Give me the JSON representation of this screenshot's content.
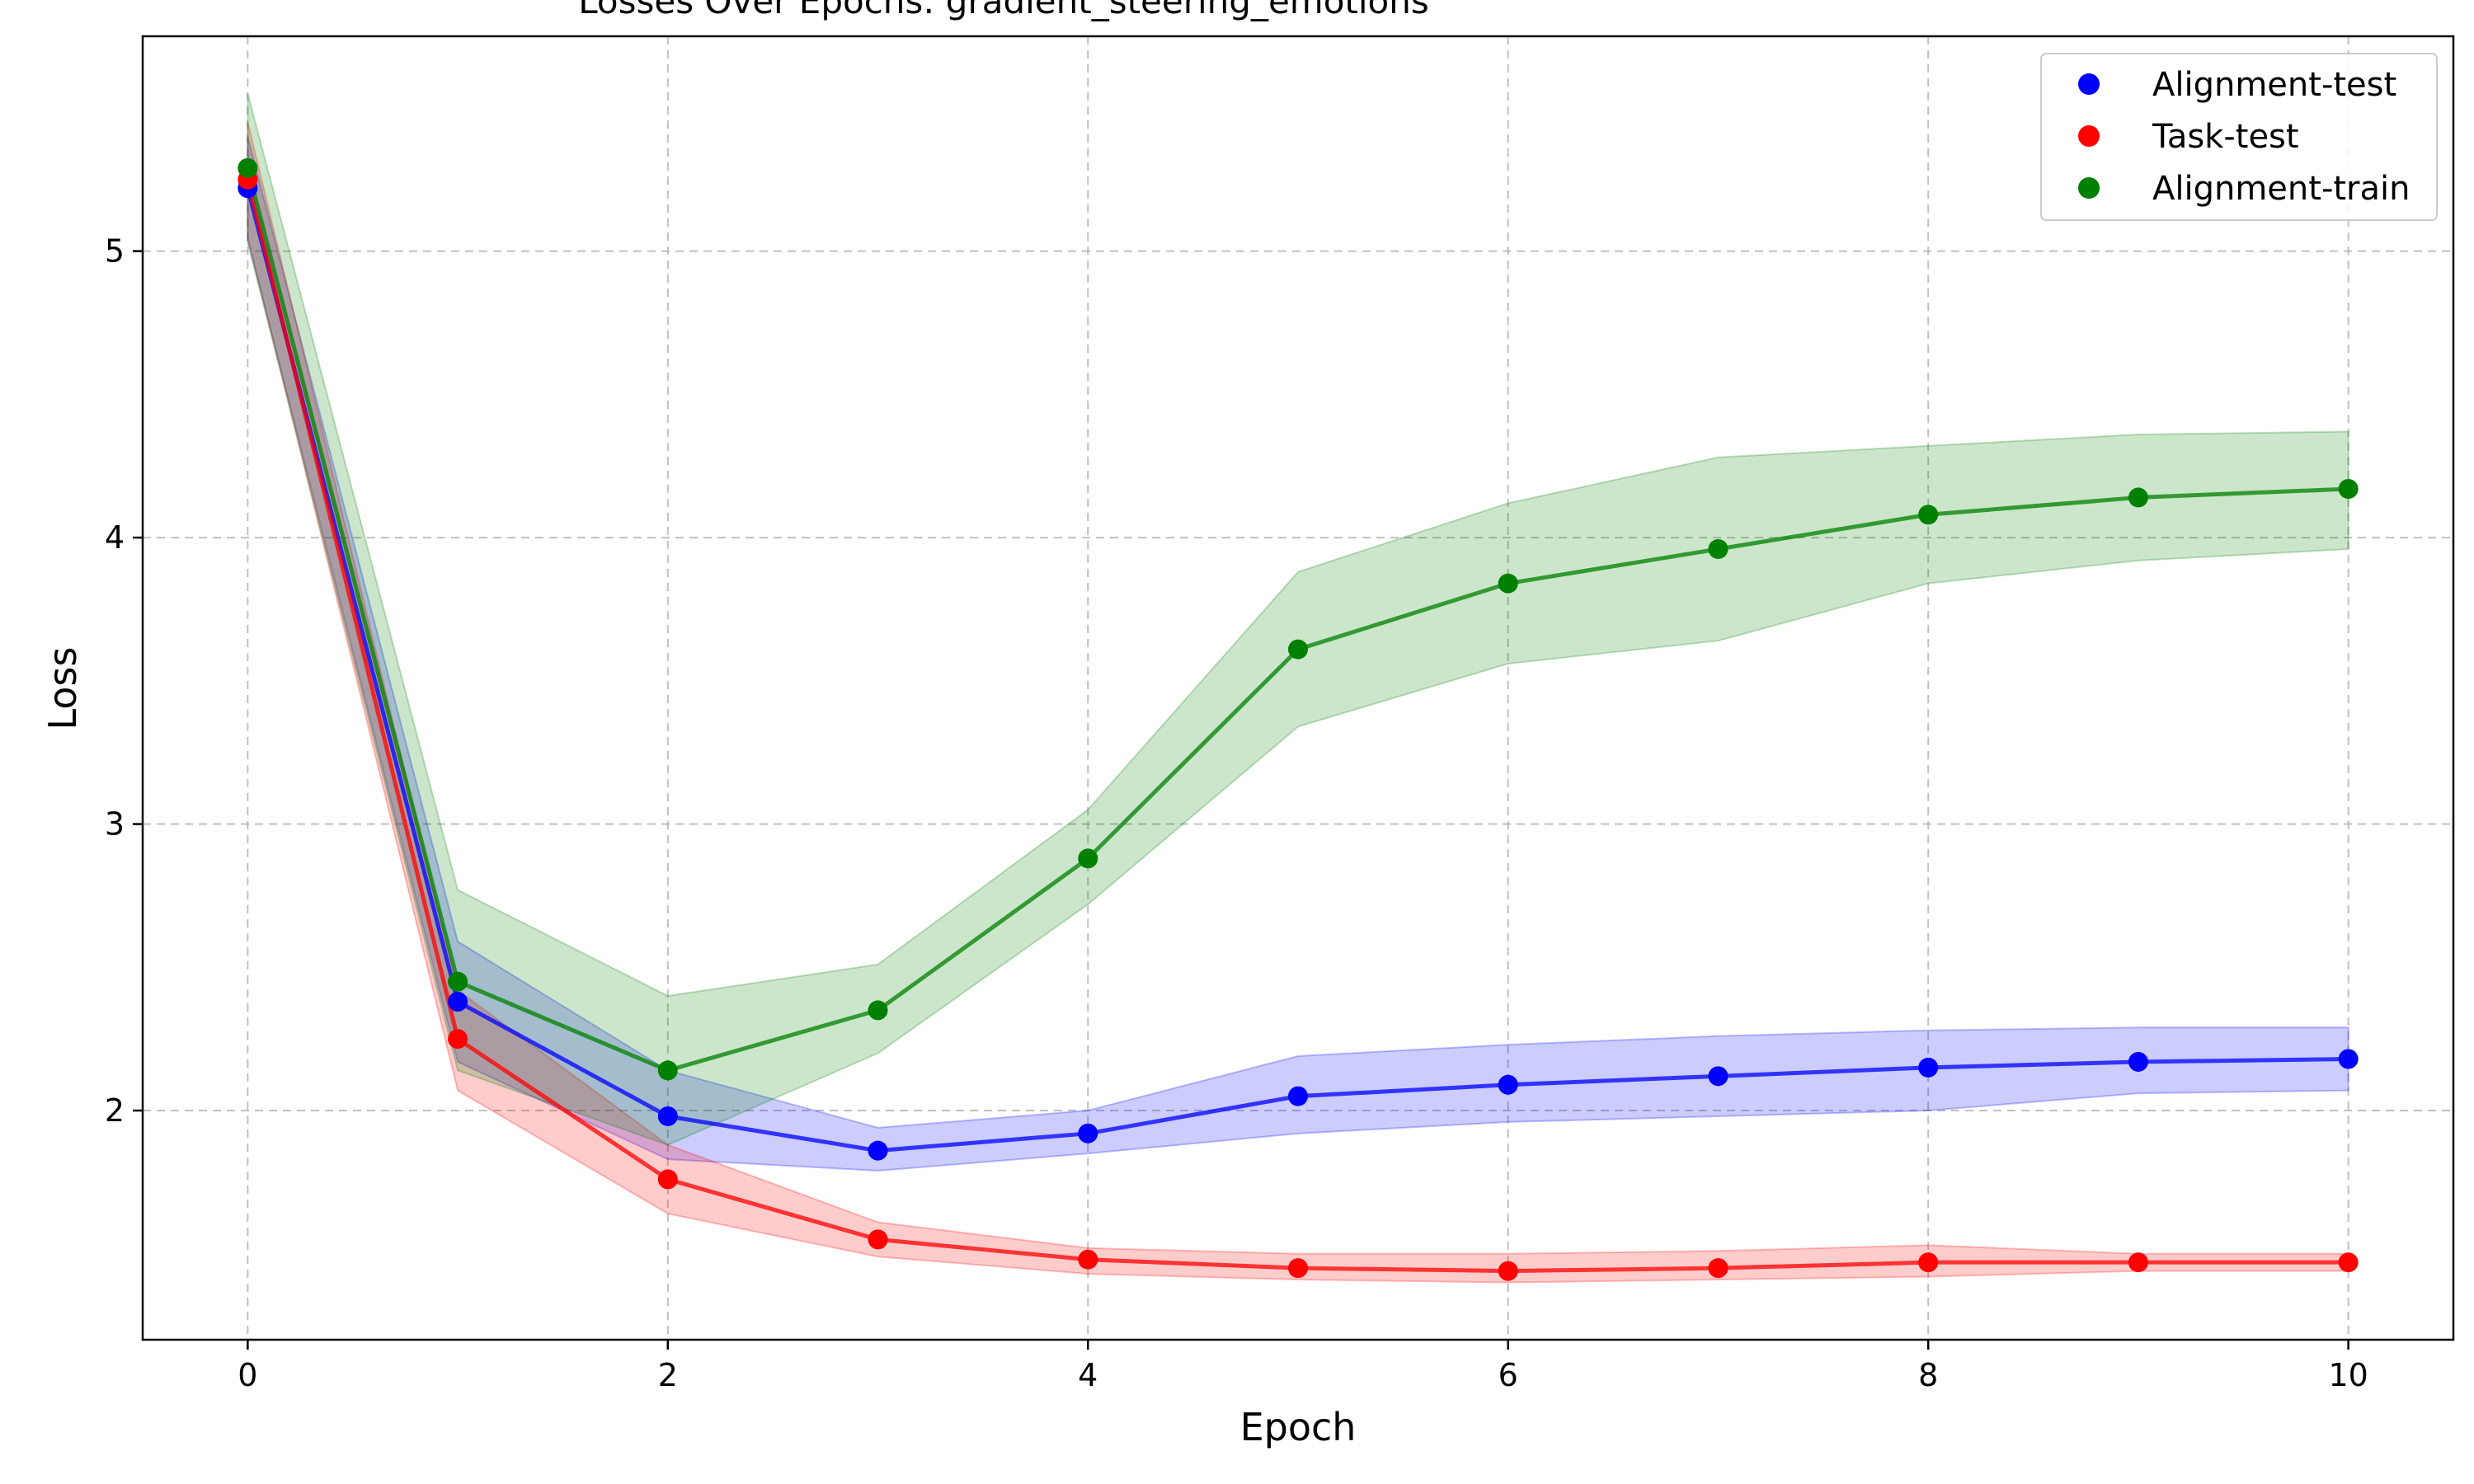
{
  "chart_data": {
    "type": "line",
    "title": "Losses Over Epochs: gradient_steering_emotions",
    "xlabel": "Epoch",
    "ylabel": "Loss",
    "xlim": [
      -0.5,
      10.5
    ],
    "ylim": [
      1.2,
      5.75
    ],
    "x_ticks": [
      0,
      2,
      4,
      6,
      8,
      10
    ],
    "y_ticks": [
      2,
      3,
      4,
      5
    ],
    "grid": true,
    "legend_position": "top-right",
    "x": [
      0,
      1,
      2,
      3,
      4,
      5,
      6,
      7,
      8,
      9,
      10
    ],
    "series": [
      {
        "name": "Alignment-test",
        "color": "#0000ff",
        "values": [
          5.22,
          2.38,
          1.98,
          1.86,
          1.92,
          2.05,
          2.09,
          2.12,
          2.15,
          2.17,
          2.18
        ],
        "upper": [
          5.4,
          2.59,
          2.14,
          1.94,
          2.0,
          2.19,
          2.23,
          2.26,
          2.28,
          2.29,
          2.29
        ],
        "lower": [
          5.04,
          2.17,
          1.83,
          1.79,
          1.85,
          1.92,
          1.96,
          1.98,
          2.0,
          2.06,
          2.07
        ]
      },
      {
        "name": "Task-test",
        "color": "#ff0000",
        "values": [
          5.25,
          2.25,
          1.76,
          1.55,
          1.48,
          1.45,
          1.44,
          1.45,
          1.47,
          1.47,
          1.47
        ],
        "upper": [
          5.45,
          2.42,
          1.88,
          1.61,
          1.52,
          1.5,
          1.5,
          1.51,
          1.53,
          1.5,
          1.5
        ],
        "lower": [
          5.05,
          2.07,
          1.64,
          1.49,
          1.43,
          1.41,
          1.4,
          1.41,
          1.42,
          1.44,
          1.44
        ]
      },
      {
        "name": "Alignment-train",
        "color": "#008000",
        "values": [
          5.29,
          2.45,
          2.14,
          2.35,
          2.88,
          3.61,
          3.84,
          3.96,
          4.08,
          4.14,
          4.17
        ],
        "upper": [
          5.55,
          2.77,
          2.4,
          2.51,
          3.05,
          3.88,
          4.12,
          4.28,
          4.32,
          4.36,
          4.37
        ],
        "lower": [
          5.03,
          2.14,
          1.88,
          2.2,
          2.72,
          3.34,
          3.56,
          3.64,
          3.84,
          3.92,
          3.96
        ]
      }
    ]
  }
}
